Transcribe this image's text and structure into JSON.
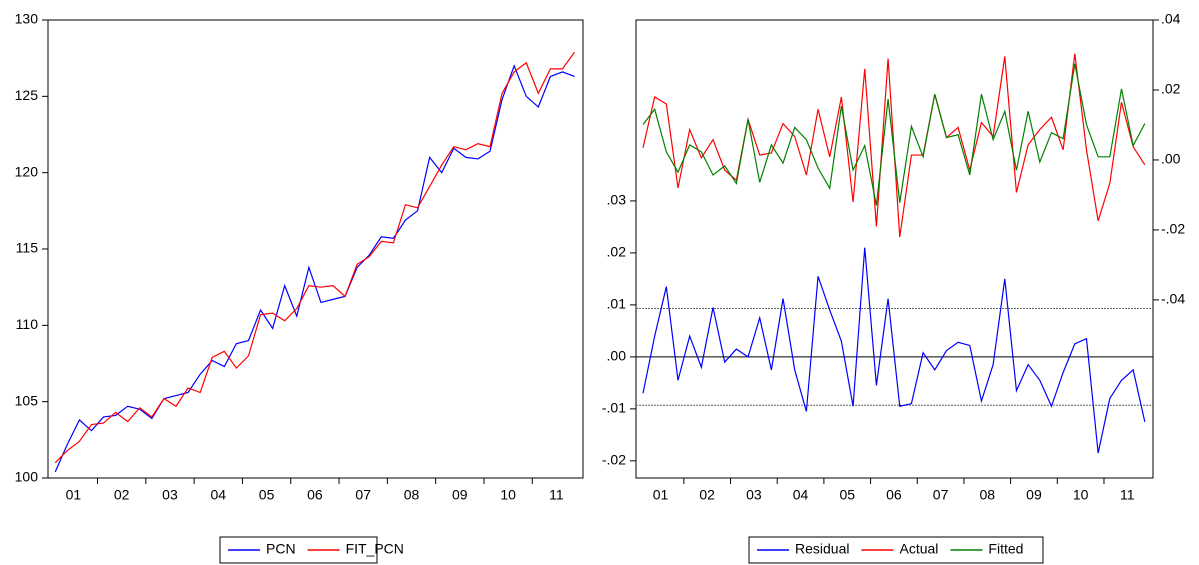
{
  "chart_data": [
    {
      "type": "line",
      "categories": [
        null,
        "01",
        null,
        null,
        null,
        "02",
        null,
        null,
        null,
        "03",
        null,
        null,
        null,
        "04",
        null,
        null,
        null,
        "05",
        null,
        null,
        null,
        "06",
        null,
        null,
        null,
        "07",
        null,
        null,
        null,
        "08",
        null,
        null,
        null,
        "09",
        null,
        null,
        null,
        "10",
        null,
        null,
        null,
        "11",
        null,
        null
      ],
      "ylim": [
        100,
        130
      ],
      "yticks": [
        100,
        105,
        110,
        115,
        120,
        125,
        130
      ],
      "legend": "bottom",
      "series": [
        {
          "name": "PCN",
          "color": "#0000ff",
          "values": [
            100.4,
            102.2,
            103.8,
            103.1,
            104.0,
            104.1,
            104.7,
            104.5,
            103.9,
            105.2,
            105.4,
            105.6,
            106.8,
            107.7,
            107.3,
            108.8,
            109.0,
            111.0,
            109.8,
            112.6,
            110.6,
            113.8,
            111.5,
            111.7,
            111.9,
            113.8,
            114.6,
            115.8,
            115.7,
            116.9,
            117.5,
            121.0,
            120.0,
            121.6,
            121.0,
            120.9,
            121.4,
            124.8,
            127.0,
            125.0,
            124.3,
            126.3,
            126.6,
            126.3
          ]
        },
        {
          "name": "FIT_PCN",
          "color": "#ff0000",
          "values": [
            101.0,
            101.8,
            102.4,
            103.5,
            103.6,
            104.3,
            103.7,
            104.6,
            104.0,
            105.2,
            104.7,
            105.9,
            105.6,
            107.9,
            108.3,
            107.2,
            108.0,
            110.7,
            110.8,
            110.3,
            111.1,
            112.6,
            112.5,
            112.6,
            111.9,
            114.0,
            114.5,
            115.5,
            115.4,
            117.9,
            117.7,
            119.1,
            120.5,
            121.7,
            121.5,
            121.9,
            121.7,
            125.2,
            126.6,
            127.2,
            125.2,
            126.8,
            126.8,
            127.9
          ]
        }
      ]
    },
    {
      "type": "line",
      "categories": [
        null,
        "01",
        null,
        null,
        null,
        "02",
        null,
        null,
        null,
        "03",
        null,
        null,
        null,
        "04",
        null,
        null,
        null,
        "05",
        null,
        null,
        null,
        "06",
        null,
        null,
        null,
        "07",
        null,
        null,
        null,
        "08",
        null,
        null,
        null,
        "09",
        null,
        null,
        null,
        "10",
        null,
        null,
        null,
        "11",
        null,
        null
      ],
      "ylim": [
        -0.0233,
        0.0648
      ],
      "yticks": [
        {
          "value": -0.02,
          "label": "-.02"
        },
        {
          "value": -0.01,
          "label": "-.01"
        },
        {
          "value": 0,
          "label": ".00"
        },
        {
          "value": 0.01,
          "label": ".01"
        },
        {
          "value": 0.02,
          "label": ".02"
        },
        {
          "value": 0.03,
          "label": ".03"
        }
      ],
      "y2lim": [
        -0.0909,
        0.04
      ],
      "y2ticks": [
        {
          "value": -0.04,
          "label": "-.04"
        },
        {
          "value": -0.02,
          "label": "-.02"
        },
        {
          "value": 0,
          "label": ".00"
        },
        {
          "value": 0.02,
          "label": ".02"
        },
        {
          "value": 0.04,
          "label": ".04"
        }
      ],
      "reference_lines": [
        {
          "value": 0,
          "style": "solid"
        },
        {
          "value": 0.0093,
          "style": "dashed"
        },
        {
          "value": -0.0093,
          "style": "dashed"
        }
      ],
      "legend": "bottom",
      "series": [
        {
          "name": "Residual",
          "color": "#0000ff",
          "axis": "y",
          "values": [
            -0.007,
            0.004,
            0.0135,
            -0.0045,
            0.004,
            -0.002,
            0.0095,
            -0.001,
            0.0015,
            0.0,
            0.0075,
            -0.0025,
            0.0112,
            -0.0025,
            -0.0105,
            0.0155,
            0.009,
            0.003,
            -0.0095,
            0.021,
            -0.0055,
            0.0112,
            -0.0095,
            -0.009,
            0.0008,
            -0.0025,
            0.0012,
            0.0028,
            0.0022,
            -0.0085,
            -0.0015,
            0.015,
            -0.0065,
            -0.0015,
            -0.0045,
            -0.0095,
            -0.003,
            0.0025,
            0.0035,
            -0.0185,
            -0.008,
            -0.0045,
            -0.0025,
            -0.0125
          ]
        },
        {
          "name": "Actual",
          "color": "#ff0000",
          "axis": "y2",
          "values": [
            0.0035,
            0.018,
            0.016,
            -0.008,
            0.0087,
            0.0006,
            0.0058,
            -0.0029,
            -0.0058,
            0.0116,
            0.0014,
            0.002,
            0.0104,
            0.0067,
            -0.0043,
            0.0145,
            0.0009,
            0.018,
            -0.012,
            0.026,
            -0.019,
            0.029,
            -0.022,
            0.0014,
            0.0014,
            0.0188,
            0.0064,
            0.0093,
            -0.0029,
            0.0107,
            0.0067,
            0.0296,
            -0.0093,
            0.0043,
            0.0087,
            0.0122,
            0.0029,
            0.0304,
            0.0029,
            -0.0174,
            -0.0067,
            0.0165,
            0.0038,
            -0.0014
          ]
        },
        {
          "name": "Fitted",
          "color": "#008000",
          "axis": "y2",
          "values": [
            0.0101,
            0.0145,
            0.0023,
            -0.0035,
            0.0043,
            0.0023,
            -0.0043,
            -0.0017,
            -0.0067,
            0.0116,
            -0.0064,
            0.0043,
            -0.0009,
            0.0093,
            0.0058,
            -0.0023,
            -0.0081,
            0.0154,
            -0.0029,
            0.0041,
            -0.013,
            0.0174,
            -0.0122,
            0.0096,
            0.0009,
            0.0188,
            0.0064,
            0.0072,
            -0.0043,
            0.0188,
            0.0058,
            0.0139,
            -0.0029,
            0.0139,
            -0.0006,
            0.0078,
            0.0061,
            0.0275,
            0.0101,
            0.0009,
            0.0009,
            0.0203,
            0.0041,
            0.0104
          ]
        }
      ]
    }
  ]
}
